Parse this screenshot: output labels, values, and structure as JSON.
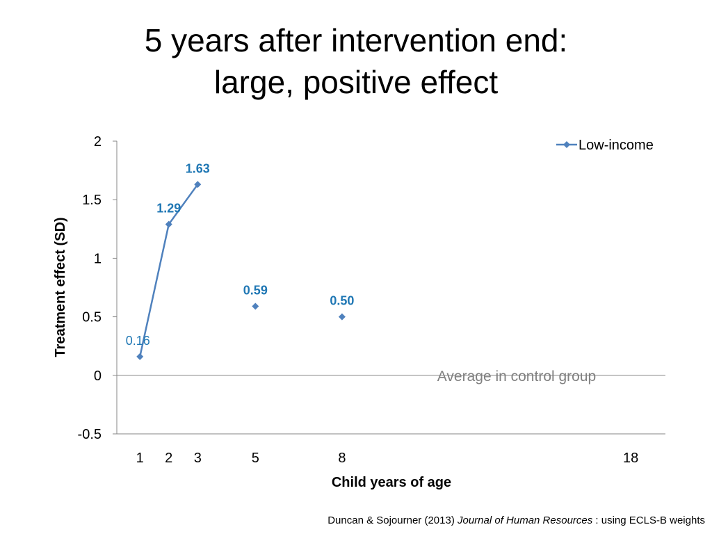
{
  "title": {
    "line1": "5 years after intervention end:",
    "line2": "large, positive effect"
  },
  "citation": {
    "authors": "Duncan & Sojourner (2013) ",
    "journal": "Journal of Human Resources",
    "rest": " : using ECLS-B weights"
  },
  "chart_data": {
    "type": "line",
    "title": "5 years after intervention end: large, positive effect",
    "xlabel": "Child years of age",
    "ylabel": "Treatment effect (SD)",
    "ylim": [
      -0.5,
      2
    ],
    "xlim": [
      0.2,
      19.2
    ],
    "yticks": [
      -0.5,
      0,
      0.5,
      1,
      1.5,
      2
    ],
    "ytick_labels": [
      "-0.5",
      "0",
      "0.5",
      "1",
      "1.5",
      "2"
    ],
    "xticks": [
      1,
      2,
      3,
      5,
      8,
      18
    ],
    "xtick_labels": [
      "1",
      "2",
      "3",
      "5",
      "8",
      "18"
    ],
    "grid": false,
    "legend": "top-right",
    "series": [
      {
        "name": "Low-income",
        "color": "#4f81bd",
        "x": [
          1,
          2,
          3,
          5,
          8
        ],
        "values": [
          0.16,
          1.29,
          1.63,
          0.59,
          0.5
        ],
        "connected": [
          true,
          true,
          true,
          false,
          false
        ],
        "labels": [
          "0.16",
          "1.29",
          "1.63",
          "0.59",
          "0.50"
        ],
        "label_bold": [
          false,
          true,
          true,
          true,
          true
        ]
      }
    ],
    "label_color": "#1f77b4",
    "reference_line": {
      "y": 0,
      "label": "Average in control group",
      "color": "#808080"
    }
  }
}
